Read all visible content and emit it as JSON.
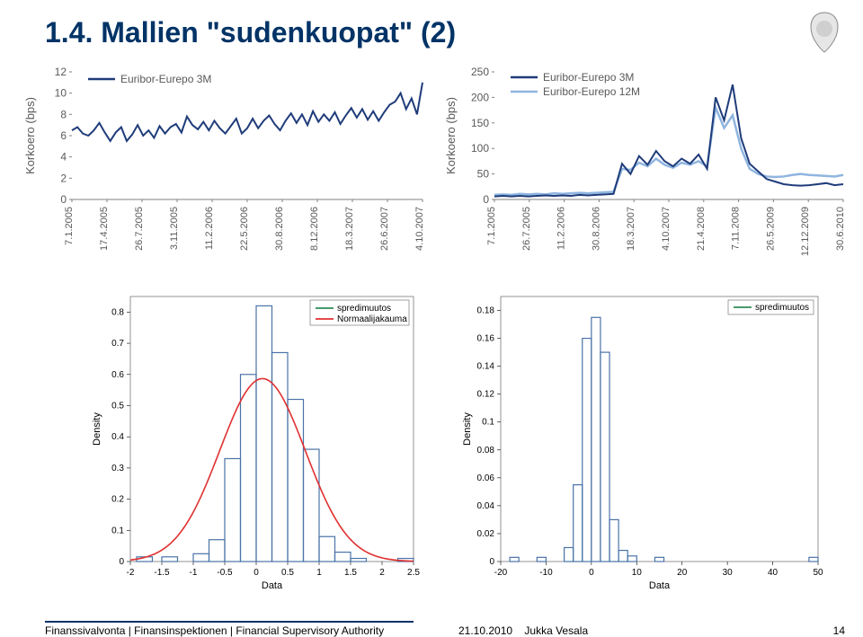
{
  "title": "1.4. Mallien \"sudenkuopat\" (2)",
  "footer": {
    "left": "Finanssivalvonta | Finansinspektionen | Financial Supervisory Authority",
    "date": "21.10.2010",
    "author": "Jukka Vesala",
    "page": "14"
  },
  "colors": {
    "title": "#003366",
    "accent": "#003366",
    "text": "#000000",
    "line_dark": "#1f3c7a",
    "line_light": "#8fb5e0",
    "axis": "#808080",
    "hist_border": "#4a73a8",
    "green": "#2e8b57",
    "red": "#e03030",
    "plotbox": "#666666"
  },
  "chartTL": {
    "legend_series1": "Euribor-Eurepo 3M",
    "ylabel": "Korkoero (bps)",
    "ylim": [
      0,
      12
    ],
    "yticks": [
      0,
      2,
      4,
      6,
      8,
      10,
      12
    ],
    "xticks": [
      "7.1.2005",
      "17.4.2005",
      "26.7.2005",
      "3.11.2005",
      "11.2.2006",
      "22.5.2006",
      "30.8.2006",
      "8.12.2006",
      "18.3.2007",
      "26.6.2007",
      "4.10.2007"
    ],
    "series1": [
      6.5,
      6.8,
      6.2,
      6.0,
      6.5,
      7.2,
      6.3,
      5.5,
      6.3,
      6.8,
      5.5,
      6.1,
      7.0,
      6.0,
      6.5,
      5.8,
      6.9,
      6.2,
      6.8,
      7.1,
      6.3,
      7.8,
      7.0,
      6.6,
      7.3,
      6.5,
      7.4,
      6.7,
      6.2,
      6.9,
      7.6,
      6.2,
      6.7,
      7.6,
      6.7,
      7.4,
      7.9,
      7.1,
      6.5,
      7.4,
      8.1,
      7.2,
      8.0,
      7.0,
      8.3,
      7.3,
      8.0,
      7.4,
      8.2,
      7.1,
      7.9,
      8.6,
      7.7,
      8.5,
      7.5,
      8.3,
      7.4,
      8.2,
      8.9,
      9.2,
      10.0,
      8.5,
      9.5,
      8.0,
      11.0
    ],
    "color": "#1f3c7a"
  },
  "chartTR": {
    "legend_series1": "Euribor-Eurepo 3M",
    "legend_series2": "Euribor-Eurepo 12M",
    "ylabel": "Korkoero (bps)",
    "ylim": [
      0,
      250
    ],
    "yticks": [
      0,
      50,
      100,
      150,
      200,
      250
    ],
    "xticks": [
      "7.1.2005",
      "26.7.2005",
      "11.2.2006",
      "30.8.2006",
      "18.3.2007",
      "4.10.2007",
      "21.4.2008",
      "7.11.2008",
      "26.5.2009",
      "12.12.2009",
      "30.6.2010"
    ],
    "series1": [
      6,
      7,
      6,
      7,
      6,
      7,
      8,
      7,
      8,
      7,
      9,
      8,
      9,
      10,
      11,
      70,
      50,
      85,
      68,
      95,
      75,
      65,
      80,
      70,
      88,
      60,
      200,
      155,
      225,
      120,
      70,
      55,
      40,
      35,
      30,
      28,
      27,
      28,
      30,
      32,
      28,
      30
    ],
    "series2": [
      9,
      10,
      9,
      11,
      10,
      11,
      10,
      12,
      11,
      12,
      13,
      12,
      13,
      14,
      15,
      60,
      58,
      72,
      65,
      80,
      68,
      62,
      72,
      68,
      75,
      65,
      180,
      140,
      165,
      100,
      60,
      50,
      45,
      44,
      45,
      48,
      50,
      48,
      47,
      46,
      45,
      48
    ],
    "color1": "#1f3c7a",
    "color2": "#8fb5e0"
  },
  "chartBL": {
    "type": "histogram+normal",
    "xlabel": "Data",
    "ylabel": "Density",
    "xlim": [
      -2,
      2.5
    ],
    "xticks": [
      -2,
      -1.5,
      -1,
      -0.5,
      0,
      0.5,
      1,
      1.5,
      2,
      2.5
    ],
    "ylim": [
      0,
      0.85
    ],
    "yticks": [
      0,
      0.1,
      0.2,
      0.3,
      0.4,
      0.5,
      0.6,
      0.7,
      0.8
    ],
    "legend": [
      "spredimuutos",
      "Normaalijakauma"
    ],
    "hist_bins": [
      {
        "x": -1.9,
        "h": 0.015
      },
      {
        "x": -1.5,
        "h": 0.015
      },
      {
        "x": -1.0,
        "h": 0.025
      },
      {
        "x": -0.75,
        "h": 0.07
      },
      {
        "x": -0.5,
        "h": 0.33
      },
      {
        "x": -0.25,
        "h": 0.6
      },
      {
        "x": 0,
        "h": 0.82
      },
      {
        "x": 0.25,
        "h": 0.67
      },
      {
        "x": 0.5,
        "h": 0.52
      },
      {
        "x": 0.75,
        "h": 0.36
      },
      {
        "x": 1.0,
        "h": 0.08
      },
      {
        "x": 1.25,
        "h": 0.03
      },
      {
        "x": 1.5,
        "h": 0.01
      },
      {
        "x": 2.25,
        "h": 0.01
      }
    ],
    "bin_width": 0.25,
    "normal_mu": 0.1,
    "normal_sigma": 0.68,
    "hist_color": "#4a73a8",
    "curve_color": "#e03030",
    "green": "#2e8b57"
  },
  "chartBR": {
    "type": "histogram",
    "xlabel": "Data",
    "ylabel": "Density",
    "xlim": [
      -20,
      50
    ],
    "xticks": [
      -20,
      -10,
      0,
      10,
      20,
      30,
      40,
      50
    ],
    "ylim": [
      0,
      0.19
    ],
    "yticks": [
      0,
      0.02,
      0.04,
      0.06,
      0.08,
      0.1,
      0.12,
      0.14,
      0.16,
      0.18
    ],
    "legend": [
      "spredimuutos"
    ],
    "hist_bins": [
      {
        "x": -18,
        "h": 0.003
      },
      {
        "x": -12,
        "h": 0.003
      },
      {
        "x": -6,
        "h": 0.01
      },
      {
        "x": -4,
        "h": 0.055
      },
      {
        "x": -2,
        "h": 0.16
      },
      {
        "x": 0,
        "h": 0.175
      },
      {
        "x": 2,
        "h": 0.15
      },
      {
        "x": 4,
        "h": 0.03
      },
      {
        "x": 6,
        "h": 0.008
      },
      {
        "x": 8,
        "h": 0.004
      },
      {
        "x": 14,
        "h": 0.003
      },
      {
        "x": 48,
        "h": 0.003
      }
    ],
    "bin_width": 2,
    "hist_color": "#4a73a8",
    "green": "#2e8b57"
  }
}
